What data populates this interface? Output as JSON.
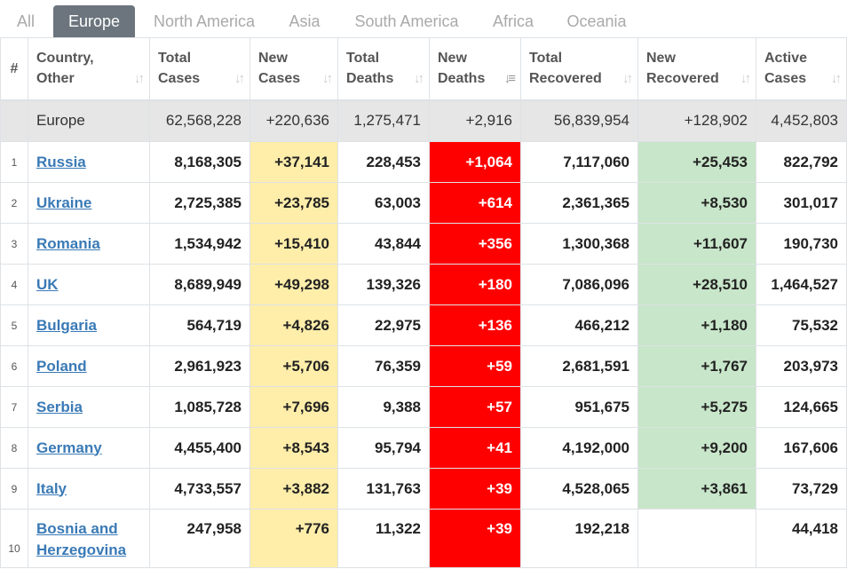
{
  "tabs": [
    "All",
    "Europe",
    "North America",
    "Asia",
    "South America",
    "Africa",
    "Oceania"
  ],
  "active_tab": "Europe",
  "headers": {
    "idx": "#",
    "country": [
      "Country,",
      "Other"
    ],
    "total_cases": [
      "Total",
      "Cases"
    ],
    "new_cases": [
      "New",
      "Cases"
    ],
    "total_deaths": [
      "Total",
      "Deaths"
    ],
    "new_deaths": [
      "New",
      "Deaths"
    ],
    "total_recovered": [
      "Total",
      "Recovered"
    ],
    "new_recovered": [
      "New",
      "Recovered"
    ],
    "active_cases": [
      "Active",
      "Cases"
    ]
  },
  "sort_icon": "sort-arrows-icon",
  "total_row": {
    "country": "Europe",
    "total_cases": "62,568,228",
    "new_cases": "+220,636",
    "total_deaths": "1,275,471",
    "new_deaths": "+2,916",
    "total_recovered": "56,839,954",
    "new_recovered": "+128,902",
    "active_cases": "4,452,803"
  },
  "rows": [
    {
      "idx": "1",
      "country": "Russia",
      "total_cases": "8,168,305",
      "new_cases": "+37,141",
      "total_deaths": "228,453",
      "new_deaths": "+1,064",
      "total_recovered": "7,117,060",
      "new_recovered": "+25,453",
      "active_cases": "822,792"
    },
    {
      "idx": "2",
      "country": "Ukraine",
      "total_cases": "2,725,385",
      "new_cases": "+23,785",
      "total_deaths": "63,003",
      "new_deaths": "+614",
      "total_recovered": "2,361,365",
      "new_recovered": "+8,530",
      "active_cases": "301,017"
    },
    {
      "idx": "3",
      "country": "Romania",
      "total_cases": "1,534,942",
      "new_cases": "+15,410",
      "total_deaths": "43,844",
      "new_deaths": "+356",
      "total_recovered": "1,300,368",
      "new_recovered": "+11,607",
      "active_cases": "190,730"
    },
    {
      "idx": "4",
      "country": "UK",
      "total_cases": "8,689,949",
      "new_cases": "+49,298",
      "total_deaths": "139,326",
      "new_deaths": "+180",
      "total_recovered": "7,086,096",
      "new_recovered": "+28,510",
      "active_cases": "1,464,527"
    },
    {
      "idx": "5",
      "country": "Bulgaria",
      "total_cases": "564,719",
      "new_cases": "+4,826",
      "total_deaths": "22,975",
      "new_deaths": "+136",
      "total_recovered": "466,212",
      "new_recovered": "+1,180",
      "active_cases": "75,532"
    },
    {
      "idx": "6",
      "country": "Poland",
      "total_cases": "2,961,923",
      "new_cases": "+5,706",
      "total_deaths": "76,359",
      "new_deaths": "+59",
      "total_recovered": "2,681,591",
      "new_recovered": "+1,767",
      "active_cases": "203,973"
    },
    {
      "idx": "7",
      "country": "Serbia",
      "total_cases": "1,085,728",
      "new_cases": "+7,696",
      "total_deaths": "9,388",
      "new_deaths": "+57",
      "total_recovered": "951,675",
      "new_recovered": "+5,275",
      "active_cases": "124,665"
    },
    {
      "idx": "8",
      "country": "Germany",
      "total_cases": "4,455,400",
      "new_cases": "+8,543",
      "total_deaths": "95,794",
      "new_deaths": "+41",
      "total_recovered": "4,192,000",
      "new_recovered": "+9,200",
      "active_cases": "167,606"
    },
    {
      "idx": "9",
      "country": "Italy",
      "total_cases": "4,733,557",
      "new_cases": "+3,882",
      "total_deaths": "131,763",
      "new_deaths": "+39",
      "total_recovered": "4,528,065",
      "new_recovered": "+3,861",
      "active_cases": "73,729"
    },
    {
      "idx": "10",
      "country": "Bosnia and Herzegovina",
      "total_cases": "247,958",
      "new_cases": "+776",
      "total_deaths": "11,322",
      "new_deaths": "+39",
      "total_recovered": "192,218",
      "new_recovered": "",
      "active_cases": "44,418"
    }
  ],
  "colors": {
    "active_tab_bg": "#6c757d",
    "new_cases_bg": "#ffeeaa",
    "new_deaths_bg": "#ff0000",
    "new_recovered_bg": "#c8e6c9",
    "total_row_bg": "#e6e6e6",
    "link": "#3a7ab6"
  }
}
